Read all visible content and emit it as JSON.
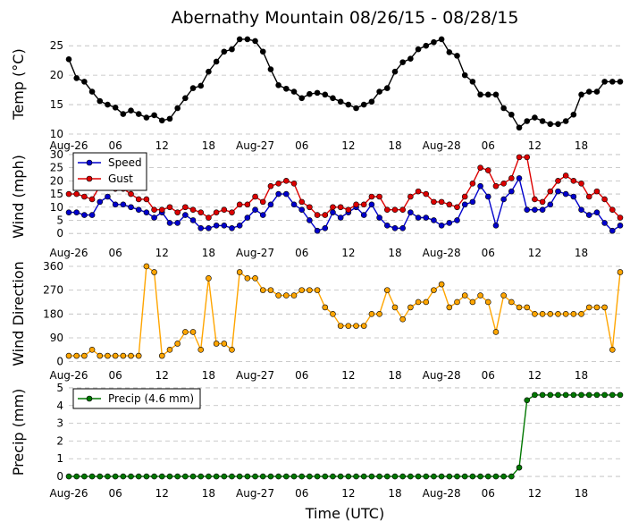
{
  "title": "Abernathy Mountain 08/26/15 - 08/28/15",
  "xlabel": "Time (UTC)",
  "x_tick_labels": [
    "Aug-26",
    "06",
    "12",
    "18",
    "Aug-27",
    "06",
    "12",
    "18",
    "Aug-28",
    "06",
    "12",
    "18"
  ],
  "chart_data": [
    {
      "type": "line",
      "name": "temperature",
      "ylabel": "Temp (°C)",
      "ylim": [
        10,
        27
      ],
      "yticks": [
        10,
        15,
        20,
        25
      ],
      "grid": "horizontal dashed",
      "x_unit": "hours from Aug-26 00 UTC",
      "x_range": [
        0,
        71
      ],
      "series": [
        {
          "color": "#000000",
          "x": [
            0,
            1,
            2,
            3,
            4,
            5,
            6,
            7,
            8,
            9,
            10,
            11,
            12,
            13,
            14,
            15,
            16,
            17,
            18,
            19,
            20,
            21,
            22,
            23,
            24,
            25,
            26,
            27,
            28,
            29,
            30,
            31,
            32,
            33,
            34,
            35,
            36,
            37,
            38,
            39,
            40,
            41,
            42,
            43,
            44,
            45,
            46,
            47,
            48,
            49,
            50,
            51,
            52,
            53,
            54,
            55,
            56,
            57,
            58,
            59,
            60,
            61,
            62,
            63,
            64,
            65,
            66,
            67,
            68,
            69,
            70,
            71
          ],
          "values": [
            22.7,
            19.5,
            18.9,
            17.2,
            15.6,
            15.0,
            14.5,
            13.4,
            14.0,
            13.4,
            12.8,
            13.2,
            12.3,
            12.6,
            14.4,
            16.1,
            17.8,
            18.2,
            20.6,
            22.3,
            24.0,
            24.4,
            26.1,
            26.1,
            25.8,
            24.0,
            21.0,
            18.3,
            17.7,
            17.2,
            16.1,
            16.8,
            17.0,
            16.7,
            16.1,
            15.5,
            15.0,
            14.4,
            15.0,
            15.5,
            17.2,
            17.8,
            20.6,
            22.2,
            22.8,
            24.4,
            25.0,
            25.6,
            26.1,
            23.9,
            23.3,
            20.0,
            18.9,
            16.7,
            16.7,
            16.7,
            14.4,
            13.3,
            11.1,
            12.2,
            12.8,
            12.2,
            11.7,
            11.7,
            12.2,
            13.3,
            16.7,
            17.2,
            17.2,
            18.9,
            18.9,
            18.9
          ]
        }
      ]
    },
    {
      "type": "line",
      "name": "wind",
      "ylabel": "Wind (mph)",
      "ylim": [
        -3,
        31
      ],
      "yticks": [
        0,
        5,
        10,
        15,
        20,
        25,
        30
      ],
      "grid": "horizontal dashed",
      "legend": "top-left",
      "x_unit": "hours from Aug-26 00 UTC",
      "x_range": [
        0,
        71
      ],
      "series": [
        {
          "name": "Speed",
          "color": "#0000cc",
          "x": [
            0,
            1,
            2,
            3,
            4,
            5,
            6,
            7,
            8,
            9,
            10,
            11,
            12,
            13,
            14,
            15,
            16,
            17,
            18,
            19,
            20,
            21,
            22,
            23,
            24,
            25,
            26,
            27,
            28,
            29,
            30,
            31,
            32,
            33,
            34,
            35,
            36,
            37,
            38,
            39,
            40,
            41,
            42,
            43,
            44,
            45,
            46,
            47,
            48,
            49,
            50,
            51,
            52,
            53,
            54,
            55,
            56,
            57,
            58,
            59,
            60,
            61,
            62,
            63,
            64,
            65,
            66,
            67,
            68,
            69,
            70,
            71
          ],
          "values": [
            8,
            8,
            7,
            7,
            12,
            14,
            11,
            11,
            10,
            9,
            8,
            6,
            8,
            4,
            4,
            7,
            5,
            2,
            2,
            3,
            3,
            2,
            3,
            6,
            9,
            7,
            11,
            15,
            15,
            11,
            9,
            5,
            1,
            2,
            8,
            6,
            8,
            10,
            7,
            11,
            6,
            3,
            2,
            2,
            8,
            6,
            6,
            5,
            3,
            4,
            5,
            11,
            12,
            18,
            14,
            3,
            13,
            16,
            21,
            9,
            9,
            9,
            11,
            16,
            15,
            14,
            9,
            7,
            8,
            4,
            1,
            3
          ]
        },
        {
          "name": "Gust",
          "color": "#dd0000",
          "x": [
            0,
            1,
            2,
            3,
            4,
            5,
            6,
            7,
            8,
            9,
            10,
            11,
            12,
            13,
            14,
            15,
            16,
            17,
            18,
            19,
            20,
            21,
            22,
            23,
            24,
            25,
            26,
            27,
            28,
            29,
            30,
            31,
            32,
            33,
            34,
            35,
            36,
            37,
            38,
            39,
            40,
            41,
            42,
            43,
            44,
            45,
            46,
            47,
            48,
            49,
            50,
            51,
            52,
            53,
            54,
            55,
            56,
            57,
            58,
            59,
            60,
            61,
            62,
            63,
            64,
            65,
            66,
            67,
            68,
            69,
            70,
            71
          ],
          "values": [
            15,
            15,
            14,
            13,
            18,
            18,
            17,
            17,
            15,
            13,
            13,
            9,
            9,
            10,
            8,
            10,
            9,
            8,
            6,
            8,
            9,
            8,
            11,
            11,
            14,
            12,
            18,
            19,
            20,
            19,
            12,
            10,
            7,
            7,
            10,
            10,
            9,
            11,
            11,
            14,
            14,
            9,
            9,
            9,
            14,
            16,
            15,
            12,
            12,
            11,
            10,
            14,
            19,
            25,
            24,
            18,
            19,
            21,
            29,
            29,
            13,
            12,
            16,
            20,
            22,
            20,
            19,
            14,
            16,
            13,
            9,
            6
          ]
        }
      ]
    },
    {
      "type": "line",
      "name": "wind_direction",
      "ylabel": "Wind Direction",
      "ylim": [
        -8,
        370
      ],
      "yticks": [
        0,
        90,
        180,
        270,
        360
      ],
      "grid": "horizontal dashed",
      "x_unit": "hours from Aug-26 00 UTC",
      "x_range": [
        0,
        71
      ],
      "series": [
        {
          "color": "#ffa500",
          "x": [
            0,
            1,
            2,
            3,
            4,
            5,
            6,
            7,
            8,
            9,
            10,
            11,
            12,
            13,
            14,
            15,
            16,
            17,
            18,
            19,
            20,
            21,
            22,
            23,
            24,
            25,
            26,
            27,
            28,
            29,
            30,
            31,
            32,
            33,
            34,
            35,
            36,
            37,
            38,
            39,
            40,
            41,
            42,
            43,
            44,
            45,
            46,
            47,
            48,
            49,
            50,
            51,
            52,
            53,
            54,
            55,
            56,
            57,
            58,
            59,
            60,
            61,
            62,
            63,
            64,
            65,
            66,
            67,
            68,
            69,
            70,
            71
          ],
          "values": [
            22,
            22,
            22,
            45,
            22,
            22,
            22,
            22,
            22,
            22,
            360,
            338,
            22,
            45,
            68,
            112,
            112,
            45,
            315,
            68,
            68,
            45,
            338,
            315,
            315,
            270,
            270,
            250,
            250,
            250,
            270,
            270,
            270,
            205,
            180,
            135,
            135,
            135,
            135,
            180,
            180,
            270,
            205,
            160,
            205,
            225,
            225,
            270,
            292,
            205,
            225,
            250,
            225,
            250,
            225,
            112,
            250,
            225,
            205,
            205,
            180,
            180,
            180,
            180,
            180,
            180,
            180,
            205,
            205,
            205,
            45,
            338
          ]
        }
      ]
    },
    {
      "type": "line",
      "name": "precipitation",
      "ylabel": "Precip (mm)",
      "ylim": [
        -0.3,
        5.3
      ],
      "yticks": [
        0,
        1,
        2,
        3,
        4,
        5
      ],
      "grid": "horizontal dashed",
      "legend": "top-left",
      "x_unit": "hours from Aug-26 00 UTC",
      "x_range": [
        0,
        71
      ],
      "series": [
        {
          "name": "Precip (4.6 mm)",
          "color": "#007700",
          "x": [
            0,
            1,
            2,
            3,
            4,
            5,
            6,
            7,
            8,
            9,
            10,
            11,
            12,
            13,
            14,
            15,
            16,
            17,
            18,
            19,
            20,
            21,
            22,
            23,
            24,
            25,
            26,
            27,
            28,
            29,
            30,
            31,
            32,
            33,
            34,
            35,
            36,
            37,
            38,
            39,
            40,
            41,
            42,
            43,
            44,
            45,
            46,
            47,
            48,
            49,
            50,
            51,
            52,
            53,
            54,
            55,
            56,
            57,
            58,
            59,
            60,
            61,
            62,
            63,
            64,
            65,
            66,
            67,
            68,
            69,
            70,
            71
          ],
          "values": [
            0,
            0,
            0,
            0,
            0,
            0,
            0,
            0,
            0,
            0,
            0,
            0,
            0,
            0,
            0,
            0,
            0,
            0,
            0,
            0,
            0,
            0,
            0,
            0,
            0,
            0,
            0,
            0,
            0,
            0,
            0,
            0,
            0,
            0,
            0,
            0,
            0,
            0,
            0,
            0,
            0,
            0,
            0,
            0,
            0,
            0,
            0,
            0,
            0,
            0,
            0,
            0,
            0,
            0,
            0,
            0,
            0,
            0,
            0.5,
            4.3,
            4.6,
            4.6,
            4.6,
            4.6,
            4.6,
            4.6,
            4.6,
            4.6,
            4.6,
            4.6,
            4.6,
            4.6
          ]
        }
      ]
    }
  ]
}
